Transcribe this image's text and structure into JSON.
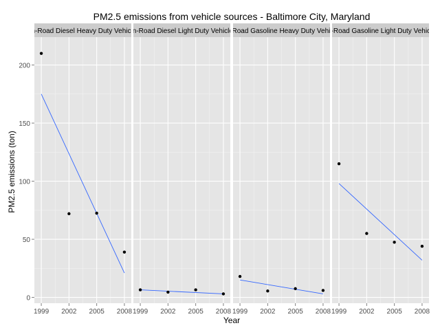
{
  "chart_data": {
    "type": "scatter",
    "title": "PM2.5 emissions from vehicle sources - Baltimore City, Maryland",
    "xlabel": "Year",
    "ylabel": "PM2.5 emissions (ton)",
    "x_ticks": [
      "1999",
      "2002",
      "2005",
      "2008"
    ],
    "y_ticks": [
      "0",
      "50",
      "100",
      "150",
      "200"
    ],
    "xlim": [
      1998.25,
      2008.75
    ],
    "ylim": [
      -5,
      224
    ],
    "grid": true,
    "facet_by": "source type",
    "facets": [
      {
        "label": "On-Road Diesel Heavy Duty Vehicles",
        "points": [
          {
            "x": 1999,
            "y": 210
          },
          {
            "x": 2002,
            "y": 72
          },
          {
            "x": 2005,
            "y": 72.5
          },
          {
            "x": 2008,
            "y": 39
          }
        ],
        "trend": [
          {
            "x": 1999,
            "y": 175
          },
          {
            "x": 2008,
            "y": 21
          }
        ]
      },
      {
        "label": "On-Road Diesel Light Duty Vehicles",
        "points": [
          {
            "x": 1999,
            "y": 6.5
          },
          {
            "x": 2002,
            "y": 4.5
          },
          {
            "x": 2005,
            "y": 6.5
          },
          {
            "x": 2008,
            "y": 3
          }
        ],
        "trend": [
          {
            "x": 1999,
            "y": 6.5
          },
          {
            "x": 2008,
            "y": 3
          }
        ]
      },
      {
        "label": "On-Road Gasoline Heavy Duty Vehicles",
        "points": [
          {
            "x": 1999,
            "y": 18
          },
          {
            "x": 2002,
            "y": 5.5
          },
          {
            "x": 2005,
            "y": 7.5
          },
          {
            "x": 2008,
            "y": 6
          }
        ],
        "trend": [
          {
            "x": 1999,
            "y": 15
          },
          {
            "x": 2008,
            "y": 3
          }
        ]
      },
      {
        "label": "On-Road Gasoline Light Duty Vehicles",
        "points": [
          {
            "x": 1999,
            "y": 115
          },
          {
            "x": 2002,
            "y": 55
          },
          {
            "x": 2005,
            "y": 47.5
          },
          {
            "x": 2008,
            "y": 44
          }
        ],
        "trend": [
          {
            "x": 1999,
            "y": 98
          },
          {
            "x": 2008,
            "y": 32
          }
        ]
      }
    ],
    "colors": {
      "panel_bg": "#e5e5e5",
      "grid_major": "#ffffff",
      "grid_minor": "#f2f2f2",
      "strip_bg": "#cccccc",
      "point": "#000000",
      "trend": "#3366ff",
      "text": "#000000",
      "tick_text": "#4d4d4d"
    }
  }
}
